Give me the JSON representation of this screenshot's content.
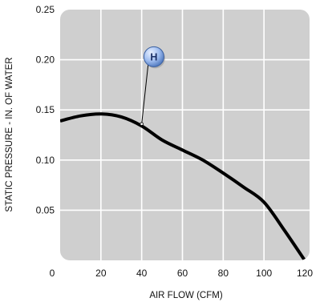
{
  "chart_data": {
    "type": "line",
    "title": "",
    "xlabel": "AIR FLOW (CFM)",
    "ylabel": "STATIC PRESSURE - IN. OF WATER",
    "xlim": [
      0,
      120
    ],
    "ylim": [
      0,
      0.25
    ],
    "x_ticks": [
      0,
      20,
      40,
      60,
      80,
      100,
      120
    ],
    "y_ticks": [
      0.05,
      0.1,
      0.15,
      0.2,
      0.25
    ],
    "x_tick_labels": [
      "0",
      "20",
      "40",
      "60",
      "80",
      "100",
      "120"
    ],
    "y_tick_labels": [
      "0.05",
      "0.10",
      "0.15",
      "0.20",
      "0.25"
    ],
    "grid": true,
    "series": [
      {
        "x": [
          0,
          10,
          20,
          30,
          40,
          50,
          60,
          70,
          80,
          90,
          100,
          110,
          120
        ],
        "y": [
          0.139,
          0.144,
          0.146,
          0.143,
          0.134,
          0.12,
          0.11,
          0.1,
          0.087,
          0.073,
          0.058,
          0.03,
          0.0
        ]
      }
    ],
    "annotation": {
      "label": "H",
      "point": [
        40,
        0.136
      ],
      "badge_at": [
        46,
        0.203
      ]
    },
    "colors": {
      "plot_background": "#cfcfcf",
      "grid": "#ffffff",
      "line": "#000000",
      "badge_fill": "#5b88cc",
      "badge_text": "#1a2f66"
    }
  }
}
